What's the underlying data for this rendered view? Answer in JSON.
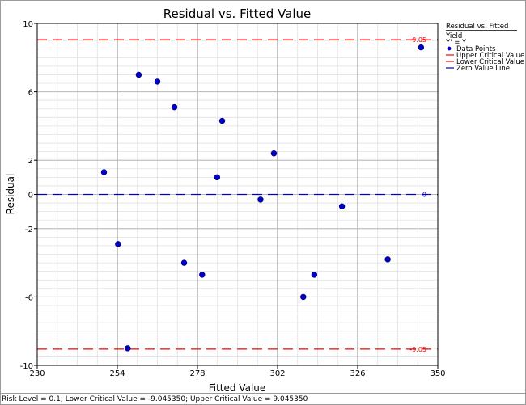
{
  "chart_data": {
    "type": "scatter",
    "title": "Residual vs. Fitted Value",
    "xlabel": "Fitted Value",
    "ylabel": "Residual",
    "xlim": [
      230,
      350
    ],
    "ylim": [
      -10,
      10
    ],
    "x_ticks": [
      230,
      254,
      278,
      302,
      326,
      350
    ],
    "y_ticks": [
      -10,
      -6,
      -2,
      0,
      2,
      6,
      10
    ],
    "x_tick_labels": [
      "230",
      "254",
      "278",
      "302",
      "326",
      "350"
    ],
    "y_tick_labels": [
      "-10",
      "-6",
      "-2",
      "0",
      "2",
      "6",
      "10"
    ],
    "grid": true,
    "series": [
      {
        "name": "Data Points",
        "color": "#0000cc",
        "points": [
          {
            "x": 250.0,
            "y": 1.3
          },
          {
            "x": 254.2,
            "y": -2.9
          },
          {
            "x": 257.1,
            "y": -9.0
          },
          {
            "x": 260.4,
            "y": 7.0
          },
          {
            "x": 266.0,
            "y": 6.6
          },
          {
            "x": 271.1,
            "y": 5.1
          },
          {
            "x": 274.0,
            "y": -4.0
          },
          {
            "x": 279.4,
            "y": -4.7
          },
          {
            "x": 283.9,
            "y": 1.0
          },
          {
            "x": 285.4,
            "y": 4.3
          },
          {
            "x": 296.9,
            "y": -0.3
          },
          {
            "x": 300.9,
            "y": 2.4
          },
          {
            "x": 309.7,
            "y": -6.0
          },
          {
            "x": 313.0,
            "y": -4.7
          },
          {
            "x": 321.3,
            "y": -0.7
          },
          {
            "x": 335.0,
            "y": -3.8
          },
          {
            "x": 345.0,
            "y": 8.6
          }
        ]
      }
    ],
    "reference_lines": [
      {
        "name": "Upper Critical Value",
        "y": 9.05,
        "label": "9.05",
        "color": "#ff0000",
        "style": "dashed"
      },
      {
        "name": "Lower Critical Value",
        "y": -9.05,
        "label": "-9.05",
        "color": "#ff0000",
        "style": "dashed"
      },
      {
        "name": "Zero Value Line",
        "y": 0,
        "label": "0",
        "color": "#0000cc",
        "style": "dashed"
      }
    ],
    "legend": {
      "placement": "top-right",
      "title": "Residual vs. Fitted",
      "lines": [
        "Yield",
        "Y' = Y"
      ],
      "entries": [
        {
          "label": "Data Points",
          "kind": "point",
          "color": "#0000cc"
        },
        {
          "label": "Upper Critical Value",
          "kind": "line",
          "color": "#ff0000"
        },
        {
          "label": "Lower Critical Value",
          "kind": "line",
          "color": "#ff0000"
        },
        {
          "label": "Zero Value Line",
          "kind": "line",
          "color": "#0000cc"
        }
      ]
    }
  },
  "footer": {
    "text": "Risk Level = 0.1; Lower Critical Value = -9.045350; Upper Critical Value = 9.045350"
  }
}
